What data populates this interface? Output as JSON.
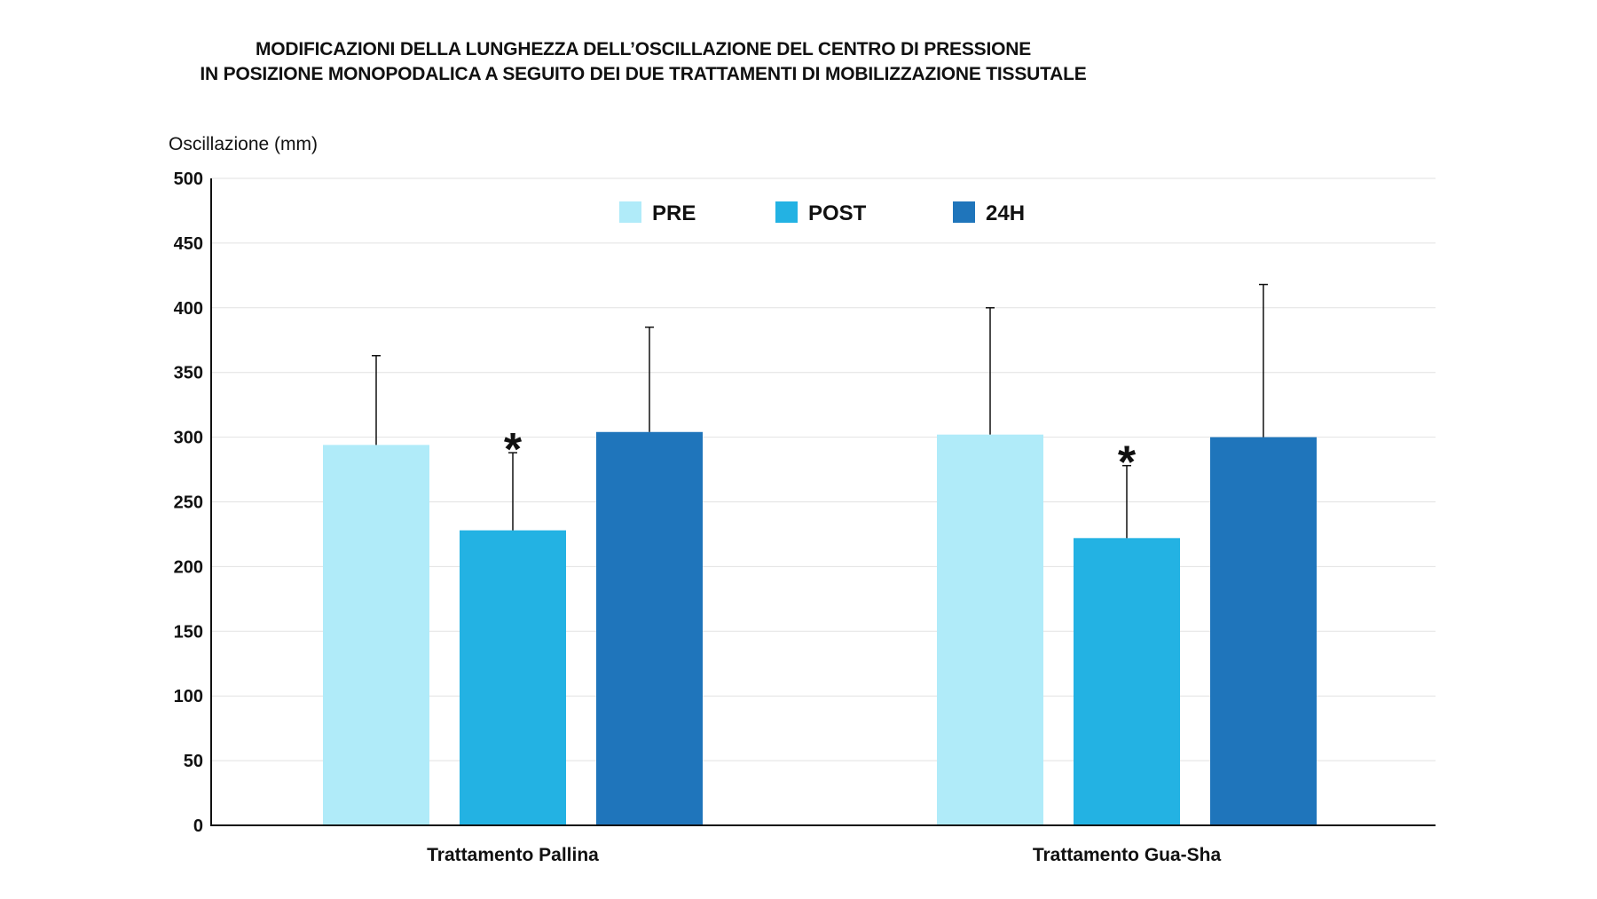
{
  "chart_data": {
    "type": "bar",
    "title_lines": [
      "MODIFICAZIONI DELLA LUNGHEZZA DELL’OSCILLAZIONE DEL CENTRO DI PRESSIONE",
      "IN POSIZIONE MONOPODALICA A SEGUITO DEI DUE TRATTAMENTI DI MOBILIZZAZIONE TISSUTALE"
    ],
    "ylabel": "Oscillazione (mm)",
    "xlabel": "",
    "ylim": [
      0,
      500
    ],
    "yticks": [
      0,
      50,
      100,
      150,
      200,
      250,
      300,
      350,
      400,
      450,
      500
    ],
    "grid": true,
    "legend_position": "top-center",
    "categories": [
      "Trattamento Pallina",
      "Trattamento Gua-Sha"
    ],
    "series": [
      {
        "name": "PRE",
        "color": "#b0ebf9",
        "values": [
          294,
          302
        ],
        "error_upper": [
          363,
          400
        ]
      },
      {
        "name": "POST",
        "color": "#23b2e3",
        "values": [
          228,
          222
        ],
        "error_upper": [
          288,
          278
        ],
        "significance": [
          "*",
          "*"
        ]
      },
      {
        "name": "24H",
        "color": "#1f75bb",
        "values": [
          304,
          300
        ],
        "error_upper": [
          385,
          418
        ]
      }
    ]
  }
}
